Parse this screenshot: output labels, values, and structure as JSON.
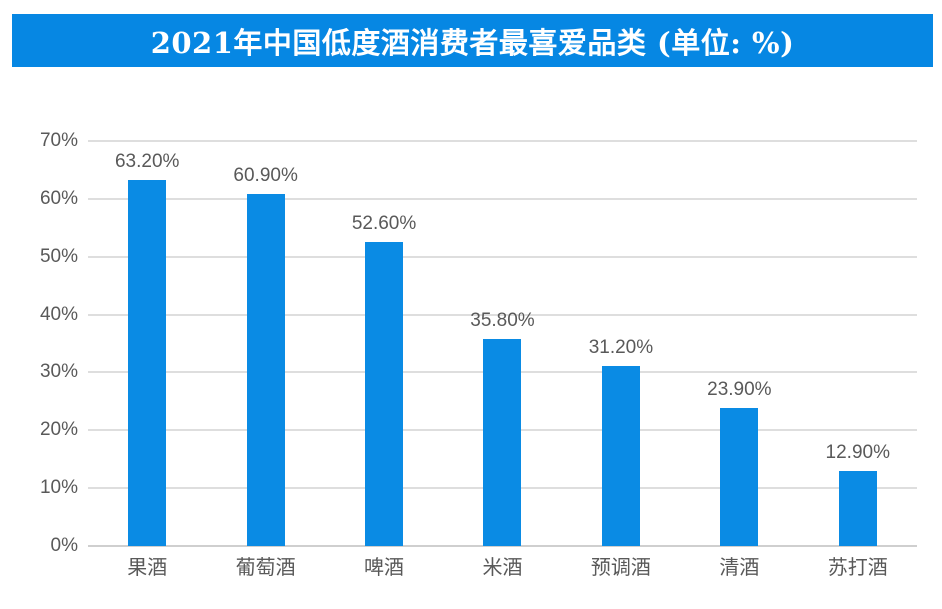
{
  "title": {
    "text": "2021年中国低度酒消费者最喜爱品类 (单位: %)"
  },
  "colors": {
    "banner_bg": "#0687e3",
    "banner_text": "#ffffff",
    "bar_fill": "#0a8be4",
    "gridline": "#dedede",
    "axis_line": "#cfcfcf",
    "label_text": "#595959"
  },
  "chart_data": {
    "type": "bar",
    "title": "2021年中国低度酒消费者最喜爱品类 (单位: %)",
    "categories": [
      "果酒",
      "葡萄酒",
      "啤酒",
      "米酒",
      "预调酒",
      "清酒",
      "苏打酒"
    ],
    "values": [
      63.2,
      60.9,
      52.6,
      35.8,
      31.2,
      23.9,
      12.9
    ],
    "value_labels": [
      "63.20%",
      "60.90%",
      "52.60%",
      "35.80%",
      "31.20%",
      "23.90%",
      "12.90%"
    ],
    "xlabel": "",
    "ylabel": "",
    "ylim": [
      0,
      70
    ],
    "ytick_step": 10,
    "ytick_labels": [
      "0%",
      "10%",
      "20%",
      "30%",
      "40%",
      "50%",
      "60%",
      "70%"
    ],
    "grid": true,
    "legend": false
  }
}
